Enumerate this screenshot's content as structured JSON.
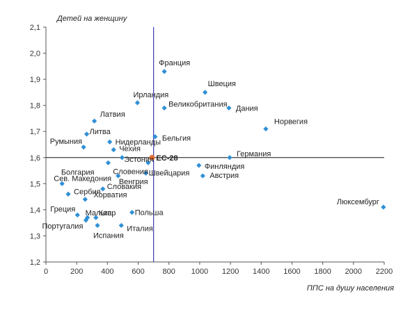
{
  "chart_data": {
    "type": "scatter",
    "title": "",
    "ylabel": "Детей на женщину",
    "xlabel": "ППС на душу населения",
    "xlim": [
      0,
      2200
    ],
    "ylim": [
      1.2,
      2.1
    ],
    "xticks": [
      "0",
      "200",
      "400",
      "600",
      "800",
      "1000",
      "1200",
      "1400",
      "1600",
      "1800",
      "2000",
      "2200"
    ],
    "yticks": [
      "1,2",
      "1,3",
      "1,4",
      "1,5",
      "1,6",
      "1,7",
      "1,8",
      "1,9",
      "2,0",
      "2,1"
    ],
    "reference_lines": {
      "x": 700,
      "y": 1.6
    },
    "colors": {
      "points": "#2f8fd6",
      "highlight": "#e8713a",
      "vline": "#3b3bb3",
      "hline": "#111111",
      "axis": "#555555"
    },
    "points": [
      {
        "name": "Франция",
        "x": 770,
        "y": 1.93
      },
      {
        "name": "Швеция",
        "x": 1035,
        "y": 1.85
      },
      {
        "name": "Ирландия",
        "x": 595,
        "y": 1.81
      },
      {
        "name": "Великобритания",
        "x": 770,
        "y": 1.79
      },
      {
        "name": "Дания",
        "x": 1190,
        "y": 1.79
      },
      {
        "name": "Норвегия",
        "x": 1430,
        "y": 1.71
      },
      {
        "name": "Латвия",
        "x": 315,
        "y": 1.74
      },
      {
        "name": "Литва",
        "x": 265,
        "y": 1.69
      },
      {
        "name": "Бельгия",
        "x": 710,
        "y": 1.68
      },
      {
        "name": "Нидерланды",
        "x": 415,
        "y": 1.66
      },
      {
        "name": "Румыния",
        "x": 245,
        "y": 1.64
      },
      {
        "name": "Чехия",
        "x": 440,
        "y": 1.63
      },
      {
        "name": "Эстония",
        "x": 495,
        "y": 1.6
      },
      {
        "name": "ЕС-28",
        "x": 690,
        "y": 1.6,
        "highlight": true
      },
      {
        "name": "Германия",
        "x": 1195,
        "y": 1.6
      },
      {
        "name": "Болгария",
        "x": 405,
        "y": 1.58
      },
      {
        "name": "Словения",
        "x": 665,
        "y": 1.58
      },
      {
        "name": "Финляндия",
        "x": 995,
        "y": 1.57
      },
      {
        "name": "Сев. Македония",
        "x": 105,
        "y": 1.5
      },
      {
        "name": "Австрия",
        "x": 1020,
        "y": 1.53
      },
      {
        "name": "Венгрия",
        "x": 470,
        "y": 1.53
      },
      {
        "name": "Швейцария",
        "x": 650,
        "y": 1.54
      },
      {
        "name": "Словакия",
        "x": 370,
        "y": 1.48
      },
      {
        "name": "Сербия",
        "x": 145,
        "y": 1.46
      },
      {
        "name": "Хорватия",
        "x": 255,
        "y": 1.44
      },
      {
        "name": "Греция",
        "x": 205,
        "y": 1.38
      },
      {
        "name": "Мальта",
        "x": 270,
        "y": 1.37
      },
      {
        "name": "Кипр",
        "x": 325,
        "y": 1.37
      },
      {
        "name": "Польша",
        "x": 560,
        "y": 1.39
      },
      {
        "name": "Португалия",
        "x": 260,
        "y": 1.36
      },
      {
        "name": "Испания",
        "x": 335,
        "y": 1.34
      },
      {
        "name": "Италия",
        "x": 490,
        "y": 1.34
      },
      {
        "name": "Люксембург",
        "x": 2195,
        "y": 1.41
      }
    ]
  }
}
